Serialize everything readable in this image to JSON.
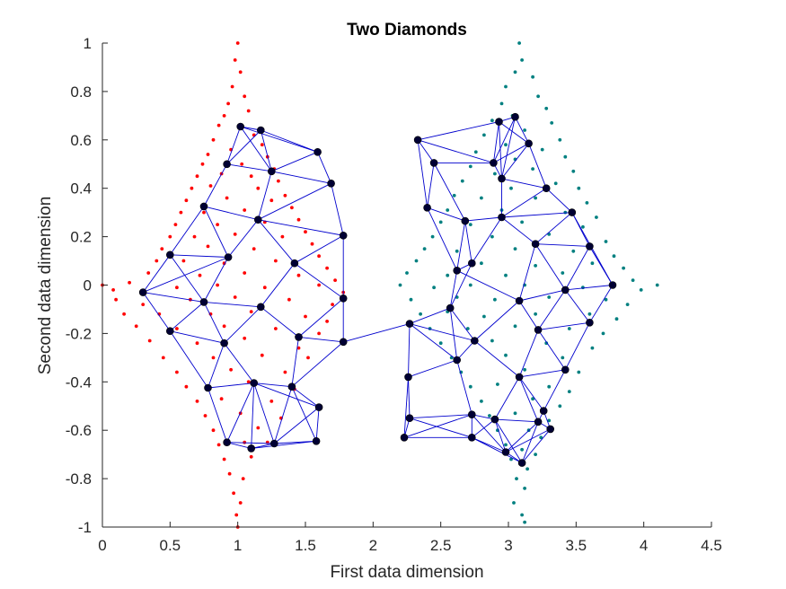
{
  "chart_data": {
    "type": "scatter",
    "title": "Two Diamonds",
    "xlabel": "First data dimension",
    "ylabel": "Second data dimension",
    "xlim": [
      0,
      4.5
    ],
    "ylim": [
      -1,
      1
    ],
    "xticks": [
      "0",
      "0.5",
      "1",
      "1.5",
      "2",
      "2.5",
      "3",
      "3.5",
      "4",
      "4.5"
    ],
    "yticks": [
      "1",
      "0.8",
      "0.6",
      "0.4",
      "0.2",
      "0",
      "-0.2",
      "-0.4",
      "-0.6",
      "-0.8",
      "-1"
    ],
    "grid": false,
    "legend": "none",
    "series": [
      {
        "color": "#ff0000",
        "marker": "dot",
        "description_of_distribution": "diamond centered at (1, 0)",
        "points": [
          [
            1.0,
            1.0
          ],
          [
            0.98,
            0.93
          ],
          [
            1.02,
            0.88
          ],
          [
            0.96,
            0.82
          ],
          [
            1.05,
            0.78
          ],
          [
            0.93,
            0.75
          ],
          [
            0.9,
            0.7
          ],
          [
            1.08,
            0.72
          ],
          [
            0.86,
            0.66
          ],
          [
            1.12,
            0.62
          ],
          [
            0.82,
            0.6
          ],
          [
            1.18,
            0.58
          ],
          [
            0.78,
            0.54
          ],
          [
            0.95,
            0.56
          ],
          [
            1.22,
            0.53
          ],
          [
            0.74,
            0.5
          ],
          [
            1.03,
            0.5
          ],
          [
            1.27,
            0.48
          ],
          [
            0.7,
            0.45
          ],
          [
            0.88,
            0.46
          ],
          [
            1.1,
            0.45
          ],
          [
            1.3,
            0.43
          ],
          [
            0.66,
            0.4
          ],
          [
            0.8,
            0.41
          ],
          [
            1.15,
            0.4
          ],
          [
            1.35,
            0.37
          ],
          [
            0.62,
            0.35
          ],
          [
            0.92,
            0.36
          ],
          [
            1.25,
            0.35
          ],
          [
            1.4,
            0.32
          ],
          [
            0.58,
            0.3
          ],
          [
            0.75,
            0.3
          ],
          [
            1.05,
            0.31
          ],
          [
            1.45,
            0.27
          ],
          [
            0.54,
            0.25
          ],
          [
            0.85,
            0.25
          ],
          [
            1.2,
            0.26
          ],
          [
            1.5,
            0.22
          ],
          [
            0.5,
            0.2
          ],
          [
            0.68,
            0.2
          ],
          [
            0.98,
            0.21
          ],
          [
            1.33,
            0.2
          ],
          [
            1.55,
            0.17
          ],
          [
            0.44,
            0.15
          ],
          [
            0.78,
            0.16
          ],
          [
            1.12,
            0.15
          ],
          [
            1.6,
            0.12
          ],
          [
            0.4,
            0.1
          ],
          [
            0.6,
            0.1
          ],
          [
            0.9,
            0.09
          ],
          [
            1.28,
            0.1
          ],
          [
            1.66,
            0.07
          ],
          [
            0.34,
            0.05
          ],
          [
            0.72,
            0.04
          ],
          [
            1.05,
            0.05
          ],
          [
            1.45,
            0.04
          ],
          [
            1.72,
            0.02
          ],
          [
            0.0,
            0.0
          ],
          [
            0.08,
            -0.02
          ],
          [
            0.2,
            0.01
          ],
          [
            0.55,
            -0.01
          ],
          [
            0.85,
            0.0
          ],
          [
            1.2,
            -0.01
          ],
          [
            1.6,
            0.0
          ],
          [
            1.78,
            -0.03
          ],
          [
            0.1,
            -0.06
          ],
          [
            0.3,
            -0.08
          ],
          [
            0.65,
            -0.06
          ],
          [
            0.98,
            -0.05
          ],
          [
            1.38,
            -0.06
          ],
          [
            1.7,
            -0.08
          ],
          [
            0.16,
            -0.12
          ],
          [
            0.42,
            -0.12
          ],
          [
            0.8,
            -0.12
          ],
          [
            1.1,
            -0.11
          ],
          [
            1.5,
            -0.13
          ],
          [
            1.66,
            -0.15
          ],
          [
            0.25,
            -0.17
          ],
          [
            0.55,
            -0.18
          ],
          [
            0.9,
            -0.17
          ],
          [
            1.28,
            -0.18
          ],
          [
            1.6,
            -0.2
          ],
          [
            0.35,
            -0.23
          ],
          [
            0.7,
            -0.24
          ],
          [
            1.05,
            -0.22
          ],
          [
            1.45,
            -0.26
          ],
          [
            0.45,
            -0.3
          ],
          [
            0.82,
            -0.3
          ],
          [
            1.18,
            -0.29
          ],
          [
            1.52,
            -0.3
          ],
          [
            0.55,
            -0.36
          ],
          [
            0.95,
            -0.35
          ],
          [
            1.35,
            -0.36
          ],
          [
            0.62,
            -0.42
          ],
          [
            1.08,
            -0.4
          ],
          [
            1.42,
            -0.43
          ],
          [
            0.7,
            -0.48
          ],
          [
            0.88,
            -0.47
          ],
          [
            1.25,
            -0.48
          ],
          [
            0.76,
            -0.54
          ],
          [
            1.02,
            -0.53
          ],
          [
            1.32,
            -0.55
          ],
          [
            0.82,
            -0.6
          ],
          [
            1.15,
            -0.59
          ],
          [
            0.86,
            -0.66
          ],
          [
            1.05,
            -0.65
          ],
          [
            1.22,
            -0.65
          ],
          [
            0.9,
            -0.72
          ],
          [
            1.1,
            -0.71
          ],
          [
            0.94,
            -0.78
          ],
          [
            1.04,
            -0.8
          ],
          [
            0.97,
            -0.86
          ],
          [
            1.02,
            -0.9
          ],
          [
            0.99,
            -0.95
          ],
          [
            1.0,
            -1.0
          ]
        ]
      },
      {
        "color": "#008080",
        "marker": "dot",
        "description_of_distribution": "diamond centered at (3.1, 0)",
        "points": [
          [
            3.08,
            1.0
          ],
          [
            3.1,
            0.93
          ],
          [
            3.05,
            0.88
          ],
          [
            3.18,
            0.86
          ],
          [
            2.98,
            0.82
          ],
          [
            3.22,
            0.78
          ],
          [
            2.95,
            0.75
          ],
          [
            3.28,
            0.73
          ],
          [
            3.03,
            0.7
          ],
          [
            2.88,
            0.68
          ],
          [
            3.32,
            0.67
          ],
          [
            3.12,
            0.64
          ],
          [
            2.82,
            0.62
          ],
          [
            3.38,
            0.6
          ],
          [
            2.98,
            0.58
          ],
          [
            3.25,
            0.56
          ],
          [
            2.76,
            0.55
          ],
          [
            3.42,
            0.53
          ],
          [
            3.05,
            0.52
          ],
          [
            2.72,
            0.49
          ],
          [
            3.18,
            0.48
          ],
          [
            3.48,
            0.47
          ],
          [
            2.9,
            0.46
          ],
          [
            2.66,
            0.43
          ],
          [
            3.35,
            0.42
          ],
          [
            3.52,
            0.4
          ],
          [
            3.02,
            0.4
          ],
          [
            2.6,
            0.37
          ],
          [
            2.8,
            0.36
          ],
          [
            3.2,
            0.36
          ],
          [
            3.58,
            0.34
          ],
          [
            2.55,
            0.31
          ],
          [
            2.95,
            0.31
          ],
          [
            3.42,
            0.3
          ],
          [
            3.65,
            0.28
          ],
          [
            2.5,
            0.26
          ],
          [
            2.72,
            0.25
          ],
          [
            3.1,
            0.26
          ],
          [
            3.55,
            0.24
          ],
          [
            2.44,
            0.2
          ],
          [
            2.88,
            0.2
          ],
          [
            3.3,
            0.21
          ],
          [
            3.72,
            0.18
          ],
          [
            2.38,
            0.15
          ],
          [
            2.62,
            0.14
          ],
          [
            3.05,
            0.15
          ],
          [
            3.48,
            0.14
          ],
          [
            3.78,
            0.12
          ],
          [
            2.32,
            0.1
          ],
          [
            2.8,
            0.09
          ],
          [
            3.2,
            0.08
          ],
          [
            3.62,
            0.09
          ],
          [
            3.85,
            0.07
          ],
          [
            2.25,
            0.05
          ],
          [
            2.55,
            0.04
          ],
          [
            2.98,
            0.04
          ],
          [
            3.4,
            0.05
          ],
          [
            3.92,
            0.02
          ],
          [
            2.2,
            0.0
          ],
          [
            2.45,
            -0.01
          ],
          [
            2.72,
            0.0
          ],
          [
            3.12,
            0.0
          ],
          [
            3.55,
            -0.01
          ],
          [
            4.1,
            0.0
          ],
          [
            3.98,
            -0.02
          ],
          [
            2.28,
            -0.06
          ],
          [
            2.62,
            -0.05
          ],
          [
            2.9,
            -0.06
          ],
          [
            3.3,
            -0.05
          ],
          [
            3.72,
            -0.06
          ],
          [
            3.88,
            -0.08
          ],
          [
            2.35,
            -0.12
          ],
          [
            2.55,
            -0.11
          ],
          [
            2.82,
            -0.13
          ],
          [
            3.2,
            -0.12
          ],
          [
            3.6,
            -0.12
          ],
          [
            3.8,
            -0.14
          ],
          [
            2.42,
            -0.18
          ],
          [
            2.7,
            -0.18
          ],
          [
            3.05,
            -0.17
          ],
          [
            3.45,
            -0.18
          ],
          [
            3.7,
            -0.2
          ],
          [
            2.5,
            -0.24
          ],
          [
            2.88,
            -0.23
          ],
          [
            3.28,
            -0.24
          ],
          [
            3.62,
            -0.26
          ],
          [
            2.58,
            -0.3
          ],
          [
            2.98,
            -0.29
          ],
          [
            3.4,
            -0.3
          ],
          [
            2.65,
            -0.36
          ],
          [
            3.12,
            -0.35
          ],
          [
            3.52,
            -0.36
          ],
          [
            2.72,
            -0.42
          ],
          [
            2.92,
            -0.41
          ],
          [
            3.3,
            -0.42
          ],
          [
            3.45,
            -0.44
          ],
          [
            2.8,
            -0.48
          ],
          [
            3.18,
            -0.47
          ],
          [
            3.38,
            -0.5
          ],
          [
            2.86,
            -0.54
          ],
          [
            3.05,
            -0.53
          ],
          [
            3.3,
            -0.56
          ],
          [
            2.92,
            -0.6
          ],
          [
            3.15,
            -0.6
          ],
          [
            3.24,
            -0.63
          ],
          [
            2.98,
            -0.66
          ],
          [
            3.1,
            -0.68
          ],
          [
            3.2,
            -0.7
          ],
          [
            3.02,
            -0.72
          ],
          [
            3.14,
            -0.76
          ],
          [
            3.06,
            -0.8
          ],
          [
            3.12,
            -0.84
          ],
          [
            3.04,
            -0.9
          ],
          [
            3.1,
            -0.95
          ],
          [
            3.12,
            -0.98
          ]
        ]
      }
    ],
    "network": {
      "node_color": "#000033",
      "edge_color": "#0000cd",
      "nodes": [
        [
          1.02,
          0.655
        ],
        [
          1.17,
          0.64
        ],
        [
          0.92,
          0.5
        ],
        [
          1.25,
          0.47
        ],
        [
          0.75,
          0.325
        ],
        [
          1.15,
          0.27
        ],
        [
          0.5,
          0.125
        ],
        [
          0.93,
          0.115
        ],
        [
          0.3,
          -0.03
        ],
        [
          1.42,
          0.09
        ],
        [
          0.75,
          -0.07
        ],
        [
          1.17,
          -0.09
        ],
        [
          0.5,
          -0.19
        ],
        [
          0.9,
          -0.24
        ],
        [
          1.45,
          -0.215
        ],
        [
          0.78,
          -0.425
        ],
        [
          1.12,
          -0.405
        ],
        [
          1.4,
          -0.42
        ],
        [
          0.92,
          -0.65
        ],
        [
          1.1,
          -0.675
        ],
        [
          1.27,
          -0.655
        ],
        [
          1.58,
          -0.645
        ],
        [
          1.59,
          0.55
        ],
        [
          1.69,
          0.42
        ],
        [
          1.78,
          0.205
        ],
        [
          1.78,
          -0.055
        ],
        [
          1.78,
          -0.235
        ],
        [
          1.6,
          -0.505
        ],
        [
          2.23,
          -0.63
        ],
        [
          2.33,
          0.6
        ],
        [
          2.45,
          0.505
        ],
        [
          2.4,
          0.32
        ],
        [
          2.27,
          -0.16
        ],
        [
          2.26,
          -0.38
        ],
        [
          2.27,
          -0.55
        ],
        [
          2.57,
          -0.095
        ],
        [
          2.62,
          -0.31
        ],
        [
          2.73,
          -0.535
        ],
        [
          2.73,
          -0.63
        ],
        [
          2.73,
          0.09
        ],
        [
          2.75,
          -0.23
        ],
        [
          2.68,
          0.265
        ],
        [
          2.62,
          0.06
        ],
        [
          2.89,
          0.505
        ],
        [
          2.93,
          0.675
        ],
        [
          3.05,
          0.695
        ],
        [
          2.95,
          0.44
        ],
        [
          2.95,
          0.28
        ],
        [
          3.15,
          0.585
        ],
        [
          3.28,
          0.4
        ],
        [
          3.2,
          0.17
        ],
        [
          3.47,
          0.3
        ],
        [
          3.08,
          -0.065
        ],
        [
          3.42,
          -0.02
        ],
        [
          3.6,
          0.16
        ],
        [
          3.77,
          0.0
        ],
        [
          3.6,
          -0.155
        ],
        [
          3.22,
          -0.185
        ],
        [
          3.08,
          -0.38
        ],
        [
          3.42,
          -0.35
        ],
        [
          2.9,
          -0.555
        ],
        [
          3.22,
          -0.565
        ],
        [
          3.31,
          -0.595
        ],
        [
          2.98,
          -0.69
        ],
        [
          3.1,
          -0.735
        ],
        [
          3.26,
          -0.52
        ]
      ]
    }
  }
}
